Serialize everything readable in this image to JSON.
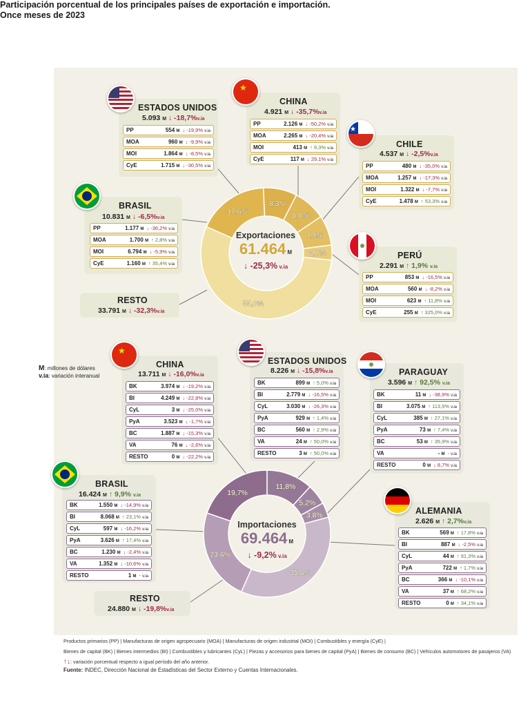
{
  "title_line1": "Participación porcentual de los principales países de exportación e importación.",
  "title_line2": "Once meses de 2023",
  "units_note": {
    "m_key": "M",
    "m_text": ": millones de dólares",
    "via_key": "v.ia",
    "via_text": ": variación interanual"
  },
  "unit_m": "M",
  "unit_via": "v.ia",
  "colors": {
    "export_dark": "#dcb04a",
    "export_light": "#eed89a",
    "import_dark": "#8d6c8e",
    "import_light": "#b9a3ba",
    "negative": "#9e2a48",
    "positive": "#557a3a"
  },
  "chart_data": [
    {
      "type": "pie",
      "title": "Exportaciones",
      "total": "61.464",
      "total_unit": "M",
      "variation": "↓ -25,3%",
      "variation_unit": "v.ia",
      "slices": [
        {
          "name": "Resto",
          "value": 55.0,
          "label": "55,0%"
        },
        {
          "name": "Brasil",
          "value": 17.6,
          "label": "17,6%"
        },
        {
          "name": "Estados Unidos",
          "value": 8.3,
          "label": "8,3%"
        },
        {
          "name": "China",
          "value": 8.0,
          "label": "8,0%"
        },
        {
          "name": "Chile",
          "value": 7.4,
          "label": "7,4%"
        },
        {
          "name": "Perú",
          "value": 3.7,
          "label": "3,7%"
        }
      ]
    },
    {
      "type": "pie",
      "title": "Importaciones",
      "total": "69.464",
      "total_unit": "M",
      "variation": "↓ -9,2%",
      "variation_unit": "v.ia",
      "slices": [
        {
          "name": "Resto",
          "value": 35.8,
          "label": "35,8%"
        },
        {
          "name": "Brasil",
          "value": 23.6,
          "label": "23,6%"
        },
        {
          "name": "China",
          "value": 19.7,
          "label": "19,7%"
        },
        {
          "name": "Estados Unidos",
          "value": 11.8,
          "label": "11,8%"
        },
        {
          "name": "Paraguay",
          "value": 5.2,
          "label": "5,2%"
        },
        {
          "name": "Alemania",
          "value": 3.8,
          "label": "3,8%"
        }
      ]
    }
  ],
  "exports": {
    "usa": {
      "name": "ESTADOS UNIDOS",
      "total": "5.093",
      "var": "↓ -18,7%",
      "rows": [
        {
          "k": "PP",
          "m": "554",
          "v": "↓ -19,9%"
        },
        {
          "k": "MOA",
          "m": "960",
          "v": "↓ -9,9%"
        },
        {
          "k": "MOI",
          "m": "1.864",
          "v": "↓ -8,5%"
        },
        {
          "k": "CyE",
          "m": "1.715",
          "v": "↓ -30,5%"
        }
      ]
    },
    "china": {
      "name": "CHINA",
      "total": "4.921",
      "var": "↓ -35,7%",
      "rows": [
        {
          "k": "PP",
          "m": "2.126",
          "v": "↓ -50,2%"
        },
        {
          "k": "MOA",
          "m": "2.265",
          "v": "↓ -20,4%"
        },
        {
          "k": "MOI",
          "m": "413",
          "v": "↑ 9,3%"
        },
        {
          "k": "CyE",
          "m": "117",
          "v": "↓ 29,1%"
        }
      ]
    },
    "chile": {
      "name": "CHILE",
      "total": "4.537",
      "var": "↓ -2,5%",
      "rows": [
        {
          "k": "PP",
          "m": "480",
          "v": "↓ -35,0%"
        },
        {
          "k": "MOA",
          "m": "1.257",
          "v": "↓ -17,3%"
        },
        {
          "k": "MOI",
          "m": "1.322",
          "v": "↓ -7,7%"
        },
        {
          "k": "CyE",
          "m": "1.478",
          "v": "↑ 53,3%"
        }
      ]
    },
    "brasil": {
      "name": "BRASIL",
      "total": "10.831",
      "var": "↓ -6,5%",
      "rows": [
        {
          "k": "PP",
          "m": "1.177",
          "v": "↓ -36,2%"
        },
        {
          "k": "MOA",
          "m": "1.700",
          "v": "↑ 2,8%"
        },
        {
          "k": "MOI",
          "m": "6.794",
          "v": "↓ -5,9%"
        },
        {
          "k": "CyE",
          "m": "1.160",
          "v": "↑ 35,4%"
        }
      ]
    },
    "peru": {
      "name": "PERÚ",
      "total": "2.291",
      "var": "↑ 1,9%",
      "rows": [
        {
          "k": "PP",
          "m": "853",
          "v": "↓ -16,5%"
        },
        {
          "k": "MOA",
          "m": "560",
          "v": "↓ -8,2%"
        },
        {
          "k": "MOI",
          "m": "623",
          "v": "↑ 11,8%"
        },
        {
          "k": "CyE",
          "m": "255",
          "v": "↑ 325,0%"
        }
      ]
    },
    "resto": {
      "name": "RESTO",
      "total": "33.791",
      "var": "↓ -32,3%"
    }
  },
  "imports": {
    "china": {
      "name": "CHINA",
      "total": "13.711",
      "var": "↓ -16,0%",
      "rows": [
        {
          "k": "BK",
          "m": "3.974",
          "v": "↓ -19,2%"
        },
        {
          "k": "BI",
          "m": "4.249",
          "v": "↓ -22,8%"
        },
        {
          "k": "CyL",
          "m": "3",
          "v": "↓ -25,0%"
        },
        {
          "k": "PyA",
          "m": "3.523",
          "v": "↓ -1,7%"
        },
        {
          "k": "BC",
          "m": "1.887",
          "v": "↓ -15,3%"
        },
        {
          "k": "VA",
          "m": "76",
          "v": "↓ -2,6%"
        },
        {
          "k": "RESTO",
          "m": "0",
          "v": "↓ -22,2%"
        }
      ]
    },
    "usa": {
      "name": "ESTADOS UNIDOS",
      "total": "8.226",
      "var": "↓ -15,8%",
      "rows": [
        {
          "k": "BK",
          "m": "899",
          "v": "↑ 5,0%"
        },
        {
          "k": "BI",
          "m": "2.779",
          "v": "↓ -16,5%"
        },
        {
          "k": "CyL",
          "m": "3.030",
          "v": "↓ -26,3%"
        },
        {
          "k": "PyA",
          "m": "929",
          "v": "↑ 1,4%"
        },
        {
          "k": "BC",
          "m": "560",
          "v": "↑ 2,9%"
        },
        {
          "k": "VA",
          "m": "24",
          "v": "↑ 50,0%"
        },
        {
          "k": "RESTO",
          "m": "3",
          "v": "↑ 50,0%"
        }
      ]
    },
    "paraguay": {
      "name": "PARAGUAY",
      "total": "3.596",
      "var": "↑ 92,5%",
      "rows": [
        {
          "k": "BK",
          "m": "11",
          "v": "↓ -38,9%"
        },
        {
          "k": "BI",
          "m": "3.075",
          "v": "↑ 113,5%"
        },
        {
          "k": "CyL",
          "m": "385",
          "v": "↑ 27,1%"
        },
        {
          "k": "PyA",
          "m": "73",
          "v": "↑ 7,4%"
        },
        {
          "k": "BC",
          "m": "53",
          "v": "↑ 35,9%"
        },
        {
          "k": "VA",
          "m": "-",
          "v": "-"
        },
        {
          "k": "RESTO",
          "m": "0",
          "v": "↓ 8,7%"
        }
      ]
    },
    "brasil": {
      "name": "BRASIL",
      "total": "16.424",
      "var": "↑ 9,9%",
      "rows": [
        {
          "k": "BK",
          "m": "1.550",
          "v": "↓ -14,9%"
        },
        {
          "k": "BI",
          "m": "8.068",
          "v": "↑ 23,1%"
        },
        {
          "k": "CyL",
          "m": "597",
          "v": "↓ -16,2%"
        },
        {
          "k": "PyA",
          "m": "3.626",
          "v": "↑ 17,4%"
        },
        {
          "k": "BC",
          "m": "1.230",
          "v": "↓ -2,4%"
        },
        {
          "k": "VA",
          "m": "1.352",
          "v": "↓ -10,6%"
        },
        {
          "k": "RESTO",
          "m": "1",
          "v": "-"
        }
      ]
    },
    "alemania": {
      "name": "ALEMANIA",
      "total": "2.626",
      "var": "↑ 2,7%",
      "rows": [
        {
          "k": "BK",
          "m": "569",
          "v": "↑ 17,8%"
        },
        {
          "k": "BI",
          "m": "887",
          "v": "↓ -2,5%"
        },
        {
          "k": "CyL",
          "m": "44",
          "v": "↑ 91,3%"
        },
        {
          "k": "PyA",
          "m": "722",
          "m2": "",
          "v": "↑ 1,7%"
        },
        {
          "k": "BC",
          "m": "366",
          "v": "↓ -10,1%"
        },
        {
          "k": "VA",
          "m": "37",
          "v": "↑ 68,2%"
        },
        {
          "k": "RESTO",
          "m": "0",
          "v": "↑ 34,1%"
        }
      ]
    },
    "resto": {
      "name": "RESTO",
      "total": "24.880",
      "var": "↓ -19,8%"
    }
  },
  "footer": {
    "line1": "Productos primarios (PP)  |  Manufacturas de origen agropecuario (MOA)  |  Manufacturas de origen industrial (MOI)  |  Combustibles y energía (CyE)  |",
    "line2": "Bienes de capital (BK)  |  Bienes intermedios (BI)  |  Combustibles y lubricantes (CyL)  |  Piezas y accesorios para bienes de capital (PyA)  |  Bienes de consumo (BC)  |  Vehículos automotores de pasajeros (VA)",
    "arrows": "↑↓",
    "line3": ": variación porcentual respecto a igual período del año anterior.",
    "source_label": "Fuente:",
    "source_text": " INDEC, Dirección Nacional de Estadísticas del Sector Externo y Cuentas Internacionales."
  }
}
